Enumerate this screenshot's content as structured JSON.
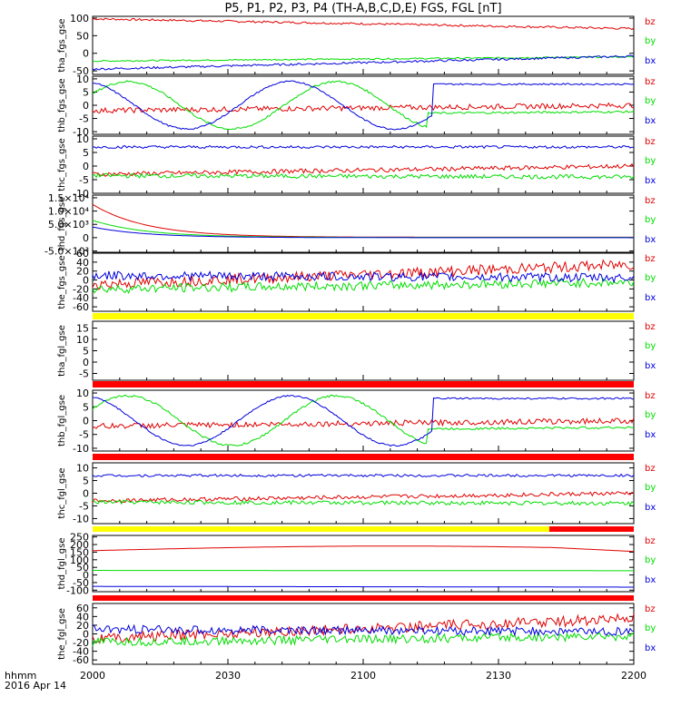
{
  "title": "P5, P1, P2, P3, P4 (TH-A,B,C,D,E) FGS, FGL [nT]",
  "footer": {
    "line1": "hhmm",
    "line2": "2016 Apr 14"
  },
  "colors": {
    "bz": "#e00000",
    "by": "#00dd00",
    "bx": "#0000dd",
    "yellow": "#ffff00",
    "red": "#ff0000"
  },
  "chart_data": {
    "type": "line",
    "x_range": [
      "2000",
      "2200"
    ],
    "x_ticks": [
      "2000",
      "2030",
      "2100",
      "2130",
      "2200"
    ],
    "legend": [
      "bz",
      "by",
      "bx"
    ],
    "panels": [
      {
        "ylabel": "tha_fgs_gse",
        "yticks": [
          "100",
          "50",
          "0",
          "-50"
        ],
        "tickvals": [
          100,
          50,
          0,
          -50
        ],
        "ylim": [
          -60,
          105
        ],
        "series": [
          {
            "name": "bz",
            "shape": "flat",
            "a": 98,
            "b": 70,
            "noise": 3
          },
          {
            "name": "by",
            "shape": "flat",
            "a": -22,
            "b": -10,
            "noise": 2
          },
          {
            "name": "bx",
            "shape": "flat",
            "a": -45,
            "b": -8,
            "noise": 3
          }
        ]
      },
      {
        "ylabel": "thb_fgs_gse",
        "yticks": [
          "10",
          "5",
          "0",
          "-5",
          "-10"
        ],
        "tickvals": [
          10,
          5,
          0,
          -5,
          -10
        ],
        "ylim": [
          -11,
          11
        ],
        "series": [
          {
            "name": "bz",
            "shape": "flat",
            "a": -2,
            "b": 0,
            "noise": 1
          },
          {
            "name": "by",
            "shape": "sine",
            "a": 9,
            "b": -3,
            "noise": 0.4
          },
          {
            "name": "bx",
            "shape": "sine2",
            "a": 9,
            "b": 8,
            "noise": 0.3
          }
        ]
      },
      {
        "ylabel": "thc_fgs_gse",
        "yticks": [
          "10",
          "5",
          "0",
          "-5",
          "-10"
        ],
        "tickvals": [
          10,
          5,
          0,
          -5,
          -10
        ],
        "ylim": [
          -10,
          11
        ],
        "series": [
          {
            "name": "bz",
            "shape": "flat",
            "a": -3,
            "b": 0,
            "noise": 0.8
          },
          {
            "name": "by",
            "shape": "flat",
            "a": -3.5,
            "b": -4,
            "noise": 0.8
          },
          {
            "name": "bx",
            "shape": "flat",
            "a": 7,
            "b": 7,
            "noise": 0.5
          }
        ]
      },
      {
        "ylabel": "thd_fgs_gse",
        "yticks": [
          "1.5×10⁴",
          "1.0×10⁴",
          "5.0×10³",
          "0",
          "-5.0×10³"
        ],
        "tickvals": [
          15000,
          10000,
          5000,
          0,
          -5000
        ],
        "ylim": [
          -5500,
          16000
        ],
        "series": [
          {
            "name": "bz",
            "shape": "decay",
            "a": 12500,
            "b": 150,
            "noise": 0
          },
          {
            "name": "by",
            "shape": "decay",
            "a": 6500,
            "b": 80,
            "noise": 0
          },
          {
            "name": "bx",
            "shape": "decay",
            "a": 4000,
            "b": 0,
            "noise": 0
          }
        ]
      },
      {
        "ylabel": "the_fgs_gse",
        "yticks": [
          "60",
          "40",
          "20",
          "0",
          "-20",
          "-40",
          "-60"
        ],
        "tickvals": [
          60,
          40,
          20,
          0,
          -20,
          -40,
          -60
        ],
        "ylim": [
          -70,
          60
        ],
        "series": [
          {
            "name": "bz",
            "shape": "flat",
            "a": -10,
            "b": 35,
            "noise": 12
          },
          {
            "name": "by",
            "shape": "flat",
            "a": -20,
            "b": -5,
            "noise": 10
          },
          {
            "name": "bx",
            "shape": "flat",
            "a": 10,
            "b": 5,
            "noise": 10
          }
        ]
      },
      {
        "ylabel": "tha_fgl_gse",
        "yticks": [
          "15",
          "10",
          "5",
          "0",
          "-5"
        ],
        "tickvals": [
          15,
          10,
          5,
          0,
          -5
        ],
        "ylim": [
          -8,
          18
        ],
        "series": []
      },
      {
        "ylabel": "thb_fgl_gse",
        "yticks": [
          "10",
          "5",
          "0",
          "-5",
          "-10"
        ],
        "tickvals": [
          10,
          5,
          0,
          -5,
          -10
        ],
        "ylim": [
          -11,
          11
        ],
        "series": [
          {
            "name": "bz",
            "shape": "flat",
            "a": -2,
            "b": 0,
            "noise": 1
          },
          {
            "name": "by",
            "shape": "sine",
            "a": 9,
            "b": -3,
            "noise": 0.4
          },
          {
            "name": "bx",
            "shape": "sine2",
            "a": 9,
            "b": 8,
            "noise": 0.3
          }
        ]
      },
      {
        "ylabel": "thc_fgl_gse",
        "yticks": [
          "10",
          "5",
          "0",
          "-5",
          "-10"
        ],
        "tickvals": [
          10,
          5,
          0,
          -5,
          -10
        ],
        "ylim": [
          -12,
          12
        ],
        "series": [
          {
            "name": "bz",
            "shape": "flat",
            "a": -3,
            "b": 0,
            "noise": 0.8
          },
          {
            "name": "by",
            "shape": "flat",
            "a": -3.5,
            "b": -4,
            "noise": 0.8
          },
          {
            "name": "bx",
            "shape": "flat",
            "a": 7,
            "b": 7,
            "noise": 0.5
          }
        ]
      },
      {
        "ylabel": "thd_fgl_gse",
        "yticks": [
          "250",
          "200",
          "150",
          "100",
          "50",
          "0",
          "-50",
          "-100"
        ],
        "tickvals": [
          250,
          200,
          150,
          100,
          50,
          0,
          -50,
          -100
        ],
        "ylim": [
          -110,
          260
        ],
        "series": [
          {
            "name": "bz",
            "shape": "arc",
            "a": 160,
            "b": 150,
            "noise": 0
          },
          {
            "name": "by",
            "shape": "flat",
            "a": 30,
            "b": 28,
            "noise": 0
          },
          {
            "name": "bx",
            "shape": "flat",
            "a": -75,
            "b": -80,
            "noise": 0
          }
        ]
      },
      {
        "ylabel": "the_fgl_gse",
        "yticks": [
          "60",
          "40",
          "20",
          "0",
          "-20",
          "-40",
          "-60"
        ],
        "tickvals": [
          60,
          40,
          20,
          0,
          -20,
          -40,
          -60
        ],
        "ylim": [
          -70,
          70
        ],
        "series": [
          {
            "name": "bz",
            "shape": "flat",
            "a": -10,
            "b": 35,
            "noise": 12
          },
          {
            "name": "by",
            "shape": "flat",
            "a": -20,
            "b": -5,
            "noise": 10
          },
          {
            "name": "bx",
            "shape": "flat",
            "a": 10,
            "b": 5,
            "noise": 10
          }
        ]
      }
    ]
  }
}
